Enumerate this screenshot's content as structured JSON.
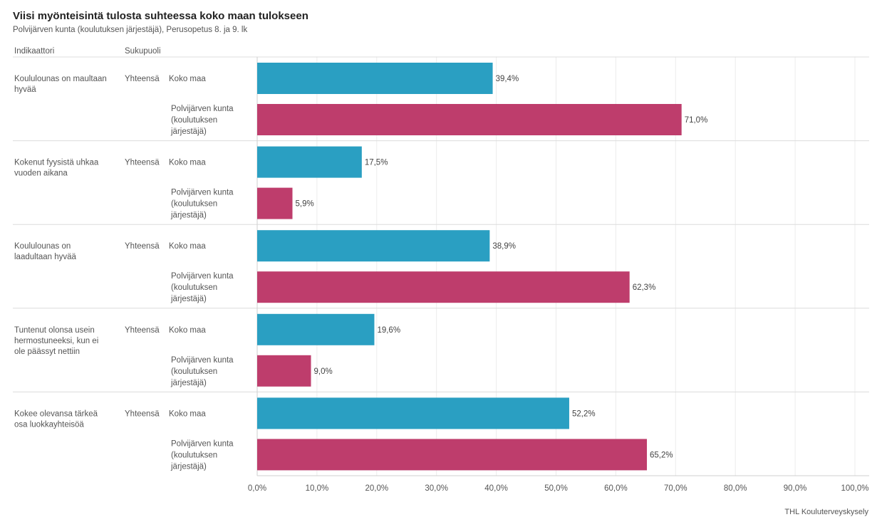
{
  "title": "Viisi myönteisintä tulosta suhteessa koko maan tulokseen",
  "subtitle": "Polvijärven kunta (koulutuksen järjestäjä), Perusopetus 8. ja 9. lk",
  "column_headers": {
    "indicator": "Indikaattori",
    "gender": "Sukupuoli"
  },
  "source": "THL Kouluterveyskysely",
  "colors": {
    "Koko maa": "#2a9fc2",
    "Polvijärven kunta (koulutuksen järjestäjä)": "#be3d6c"
  },
  "chart_data": {
    "type": "bar",
    "orientation": "horizontal",
    "xlim": [
      0,
      100
    ],
    "x_ticks": [
      "0,0%",
      "10,0%",
      "20,0%",
      "30,0%",
      "40,0%",
      "50,0%",
      "60,0%",
      "70,0%",
      "80,0%",
      "90,0%",
      "100,0%"
    ],
    "series": [
      "Koko maa",
      "Polvijärven kunta (koulutuksen järjestäjä)"
    ],
    "groups": [
      {
        "indicator": "Koululounas on maultaan hyvää",
        "gender": "Yhteensä",
        "bars": [
          {
            "label": "Koko maa",
            "value": 39.4,
            "value_label": "39,4%"
          },
          {
            "label": "Polvijärven kunta (koulutuksen järjestäjä)",
            "value": 71.0,
            "value_label": "71,0%"
          }
        ]
      },
      {
        "indicator": "Kokenut fyysistä uhkaa vuoden aikana",
        "gender": "Yhteensä",
        "bars": [
          {
            "label": "Koko maa",
            "value": 17.5,
            "value_label": "17,5%"
          },
          {
            "label": "Polvijärven kunta (koulutuksen järjestäjä)",
            "value": 5.9,
            "value_label": "5,9%"
          }
        ]
      },
      {
        "indicator": "Koululounas on laadultaan hyvää",
        "gender": "Yhteensä",
        "bars": [
          {
            "label": "Koko maa",
            "value": 38.9,
            "value_label": "38,9%"
          },
          {
            "label": "Polvijärven kunta (koulutuksen järjestäjä)",
            "value": 62.3,
            "value_label": "62,3%"
          }
        ]
      },
      {
        "indicator": "Tuntenut olonsa usein hermostuneeksi, kun ei ole päässyt nettiin",
        "gender": "Yhteensä",
        "bars": [
          {
            "label": "Koko maa",
            "value": 19.6,
            "value_label": "19,6%"
          },
          {
            "label": "Polvijärven kunta (koulutuksen järjestäjä)",
            "value": 9.0,
            "value_label": "9,0%"
          }
        ]
      },
      {
        "indicator": "Kokee olevansa tärkeä osa luokkayhteisöä",
        "gender": "Yhteensä",
        "bars": [
          {
            "label": "Koko maa",
            "value": 52.2,
            "value_label": "52,2%"
          },
          {
            "label": "Polvijärven kunta (koulutuksen järjestäjä)",
            "value": 65.2,
            "value_label": "65,2%"
          }
        ]
      }
    ]
  }
}
